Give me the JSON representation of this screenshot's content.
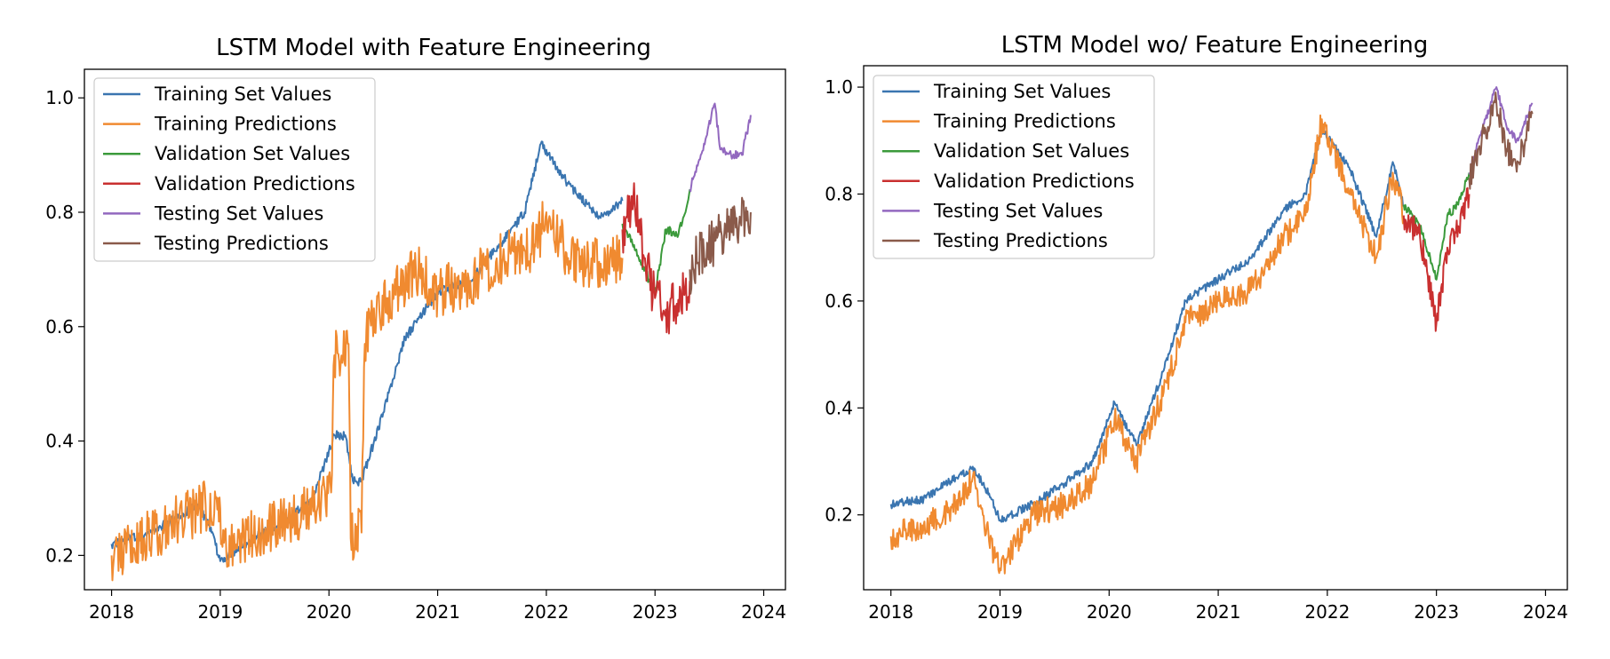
{
  "chart_data": [
    {
      "type": "line",
      "title": "LSTM Model with Feature Engineering",
      "xlabel": "",
      "ylabel": "",
      "xlim": [
        2017.75,
        2024.2
      ],
      "ylim": [
        0.14,
        1.05
      ],
      "x_ticks": [
        2018,
        2019,
        2020,
        2021,
        2022,
        2023,
        2024
      ],
      "x_tick_labels": [
        "2018",
        "2019",
        "2020",
        "2021",
        "2022",
        "2023",
        "2024"
      ],
      "y_ticks": [
        0.2,
        0.4,
        0.6,
        0.8,
        1.0
      ],
      "y_tick_labels": [
        "0.2",
        "0.4",
        "0.6",
        "0.8",
        "1.0"
      ],
      "grid": false,
      "legend_position": "upper-left",
      "series": [
        {
          "name": "Training Set Values",
          "color": "#3a75b0",
          "x": [
            2018.0,
            2018.3,
            2018.6,
            2018.8,
            2018.92,
            2019.0,
            2019.3,
            2019.6,
            2019.85,
            2020.05,
            2020.15,
            2020.22,
            2020.3,
            2020.5,
            2020.7,
            2021.0,
            2021.3,
            2021.6,
            2021.8,
            2021.95,
            2022.2,
            2022.5,
            2022.7
          ],
          "y": [
            0.22,
            0.235,
            0.265,
            0.29,
            0.24,
            0.19,
            0.23,
            0.26,
            0.3,
            0.41,
            0.41,
            0.33,
            0.33,
            0.45,
            0.58,
            0.66,
            0.68,
            0.75,
            0.8,
            0.92,
            0.85,
            0.79,
            0.82
          ]
        },
        {
          "name": "Training Predictions",
          "color": "#f08a30",
          "x": [
            2018.0,
            2018.3,
            2018.6,
            2018.8,
            2018.98,
            2019.02,
            2019.3,
            2019.6,
            2019.9,
            2020.02,
            2020.05,
            2020.18,
            2020.2,
            2020.3,
            2020.33,
            2020.4,
            2020.6,
            2020.8,
            2021.0,
            2021.3,
            2021.6,
            2021.9,
            2022.0,
            2022.2,
            2022.5,
            2022.7
          ],
          "y": [
            0.2,
            0.23,
            0.26,
            0.28,
            0.3,
            0.215,
            0.235,
            0.26,
            0.29,
            0.31,
            0.55,
            0.57,
            0.23,
            0.24,
            0.57,
            0.62,
            0.66,
            0.7,
            0.66,
            0.68,
            0.72,
            0.74,
            0.8,
            0.72,
            0.71,
            0.72
          ]
        },
        {
          "name": "Validation Set Values",
          "color": "#3b9a3b",
          "x": [
            2022.7,
            2022.85,
            2023.0,
            2023.1,
            2023.2,
            2023.28,
            2023.32
          ],
          "y": [
            0.78,
            0.72,
            0.66,
            0.77,
            0.76,
            0.8,
            0.84
          ]
        },
        {
          "name": "Validation Predictions",
          "color": "#c93030",
          "x": [
            2022.7,
            2022.8,
            2022.9,
            2023.0,
            2023.1,
            2023.2,
            2023.32
          ],
          "y": [
            0.77,
            0.82,
            0.72,
            0.65,
            0.63,
            0.64,
            0.68
          ]
        },
        {
          "name": "Testing Set Values",
          "color": "#9268bf",
          "x": [
            2023.32,
            2023.45,
            2023.55,
            2023.6,
            2023.7,
            2023.8,
            2023.88
          ],
          "y": [
            0.84,
            0.92,
            0.99,
            0.91,
            0.9,
            0.9,
            0.97
          ]
        },
        {
          "name": "Testing Predictions",
          "color": "#8a5a4a",
          "x": [
            2023.32,
            2023.45,
            2023.55,
            2023.65,
            2023.75,
            2023.88
          ],
          "y": [
            0.7,
            0.73,
            0.75,
            0.77,
            0.79,
            0.8
          ]
        }
      ]
    },
    {
      "type": "line",
      "title": "LSTM Model wo/ Feature Engineering",
      "xlabel": "",
      "ylabel": "",
      "xlim": [
        2017.75,
        2024.2
      ],
      "ylim": [
        0.06,
        1.04
      ],
      "x_ticks": [
        2018,
        2019,
        2020,
        2021,
        2022,
        2023,
        2024
      ],
      "x_tick_labels": [
        "2018",
        "2019",
        "2020",
        "2021",
        "2022",
        "2023",
        "2024"
      ],
      "y_ticks": [
        0.2,
        0.4,
        0.6,
        0.8,
        1.0
      ],
      "y_tick_labels": [
        "0.2",
        "0.4",
        "0.6",
        "0.8",
        "1.0"
      ],
      "grid": false,
      "legend_position": "upper-left",
      "series": [
        {
          "name": "Training Set Values",
          "color": "#3a75b0",
          "x": [
            2018.0,
            2018.3,
            2018.6,
            2018.75,
            2018.9,
            2019.0,
            2019.3,
            2019.6,
            2019.85,
            2020.05,
            2020.25,
            2020.5,
            2020.7,
            2021.0,
            2021.3,
            2021.6,
            2021.8,
            2021.95,
            2022.2,
            2022.45,
            2022.6,
            2022.7
          ],
          "y": [
            0.22,
            0.23,
            0.27,
            0.29,
            0.24,
            0.19,
            0.22,
            0.26,
            0.3,
            0.41,
            0.33,
            0.47,
            0.6,
            0.64,
            0.68,
            0.77,
            0.8,
            0.92,
            0.85,
            0.72,
            0.86,
            0.78
          ]
        },
        {
          "name": "Training Predictions",
          "color": "#f08a30",
          "x": [
            2018.0,
            2018.3,
            2018.6,
            2018.75,
            2018.9,
            2019.0,
            2019.3,
            2019.6,
            2019.85,
            2020.05,
            2020.25,
            2020.5,
            2020.7,
            2021.0,
            2021.3,
            2021.6,
            2021.8,
            2021.95,
            2022.2,
            2022.45,
            2022.6,
            2022.7
          ],
          "y": [
            0.16,
            0.18,
            0.22,
            0.27,
            0.15,
            0.1,
            0.2,
            0.22,
            0.26,
            0.38,
            0.3,
            0.43,
            0.56,
            0.6,
            0.62,
            0.72,
            0.76,
            0.94,
            0.8,
            0.68,
            0.84,
            0.76
          ]
        },
        {
          "name": "Validation Set Values",
          "color": "#3b9a3b",
          "x": [
            2022.7,
            2022.85,
            2023.0,
            2023.1,
            2023.2,
            2023.3
          ],
          "y": [
            0.78,
            0.74,
            0.64,
            0.76,
            0.78,
            0.84
          ]
        },
        {
          "name": "Validation Predictions",
          "color": "#c93030",
          "x": [
            2022.7,
            2022.85,
            2023.0,
            2023.1,
            2023.2,
            2023.3
          ],
          "y": [
            0.76,
            0.72,
            0.56,
            0.7,
            0.74,
            0.8
          ]
        },
        {
          "name": "Testing Set Values",
          "color": "#9268bf",
          "x": [
            2023.3,
            2023.45,
            2023.55,
            2023.65,
            2023.75,
            2023.88
          ],
          "y": [
            0.84,
            0.94,
            1.0,
            0.92,
            0.9,
            0.97
          ]
        },
        {
          "name": "Testing Predictions",
          "color": "#8a5a4a",
          "x": [
            2023.3,
            2023.45,
            2023.55,
            2023.65,
            2023.75,
            2023.88
          ],
          "y": [
            0.83,
            0.92,
            0.97,
            0.88,
            0.86,
            0.95
          ]
        }
      ]
    }
  ]
}
